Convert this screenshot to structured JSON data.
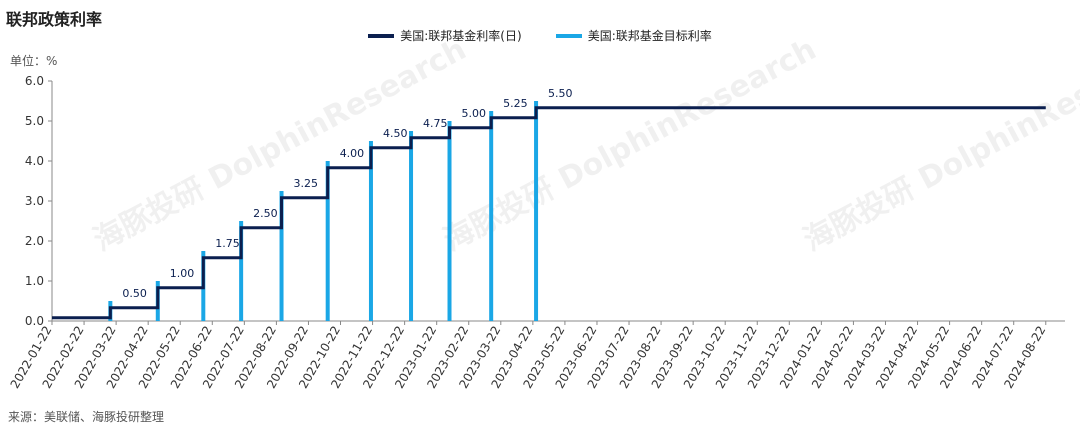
{
  "title": "联邦政策利率",
  "unit_label": "单位：%",
  "source": "来源：美联储、海豚投研整理",
  "watermark": "海豚投研 DolphinResearch",
  "legend": [
    {
      "name": "美国:联邦基金利率(日)",
      "color": "#0b1f4f"
    },
    {
      "name": "美国:联邦基金目标利率",
      "color": "#1aa7e6"
    }
  ],
  "chart_data": {
    "type": "line",
    "categories": [
      "2022-01-22",
      "2022-02-22",
      "2022-03-22",
      "2022-04-22",
      "2022-05-22",
      "2022-06-22",
      "2022-07-22",
      "2022-08-22",
      "2022-09-22",
      "2022-10-22",
      "2022-11-22",
      "2022-12-22",
      "2023-01-22",
      "2023-02-22",
      "2023-03-22",
      "2023-04-22",
      "2023-05-22",
      "2023-06-22",
      "2023-07-22",
      "2023-08-22",
      "2023-09-22",
      "2023-10-22",
      "2023-11-22",
      "2023-12-22",
      "2024-01-22",
      "2024-02-22",
      "2024-03-22",
      "2024-04-22",
      "2024-05-22",
      "2024-06-22",
      "2024-07-22",
      "2024-08-22"
    ],
    "ylim": [
      0,
      6
    ],
    "yticks": [
      "0.0",
      "1.0",
      "2.0",
      "3.0",
      "4.0",
      "5.0",
      "6.0"
    ],
    "series": [
      {
        "name": "美国:联邦基金利率(日)",
        "steps": [
          {
            "from": 0.0,
            "to": 1.82,
            "value": 0.08
          },
          {
            "from": 1.82,
            "to": 3.3,
            "value": 0.33
          },
          {
            "from": 3.3,
            "to": 4.72,
            "value": 0.83
          },
          {
            "from": 4.72,
            "to": 5.9,
            "value": 1.58
          },
          {
            "from": 5.9,
            "to": 7.16,
            "value": 2.33
          },
          {
            "from": 7.16,
            "to": 8.6,
            "value": 3.08
          },
          {
            "from": 8.6,
            "to": 9.95,
            "value": 3.83
          },
          {
            "from": 9.95,
            "to": 11.2,
            "value": 4.33
          },
          {
            "from": 11.2,
            "to": 12.4,
            "value": 4.58
          },
          {
            "from": 12.4,
            "to": 13.7,
            "value": 4.83
          },
          {
            "from": 13.7,
            "to": 15.1,
            "value": 5.08
          },
          {
            "from": 15.1,
            "to": 31.0,
            "value": 5.33
          }
        ]
      },
      {
        "name": "美国:联邦基金目标利率",
        "hikes": [
          {
            "x": 1.82,
            "value": 0.5,
            "label": "0.50"
          },
          {
            "x": 3.3,
            "value": 1.0,
            "label": "1.00"
          },
          {
            "x": 4.72,
            "value": 1.75,
            "label": "1.75"
          },
          {
            "x": 5.9,
            "value": 2.5,
            "label": "2.50"
          },
          {
            "x": 7.16,
            "value": 3.25,
            "label": "3.25"
          },
          {
            "x": 8.6,
            "value": 4.0,
            "label": "4.00"
          },
          {
            "x": 9.95,
            "value": 4.5,
            "label": "4.50"
          },
          {
            "x": 11.2,
            "value": 4.75,
            "label": "4.75"
          },
          {
            "x": 12.4,
            "value": 5.0,
            "label": "5.00"
          },
          {
            "x": 13.7,
            "value": 5.25,
            "label": "5.25"
          },
          {
            "x": 15.1,
            "value": 5.5,
            "label": "5.50"
          }
        ]
      }
    ]
  }
}
